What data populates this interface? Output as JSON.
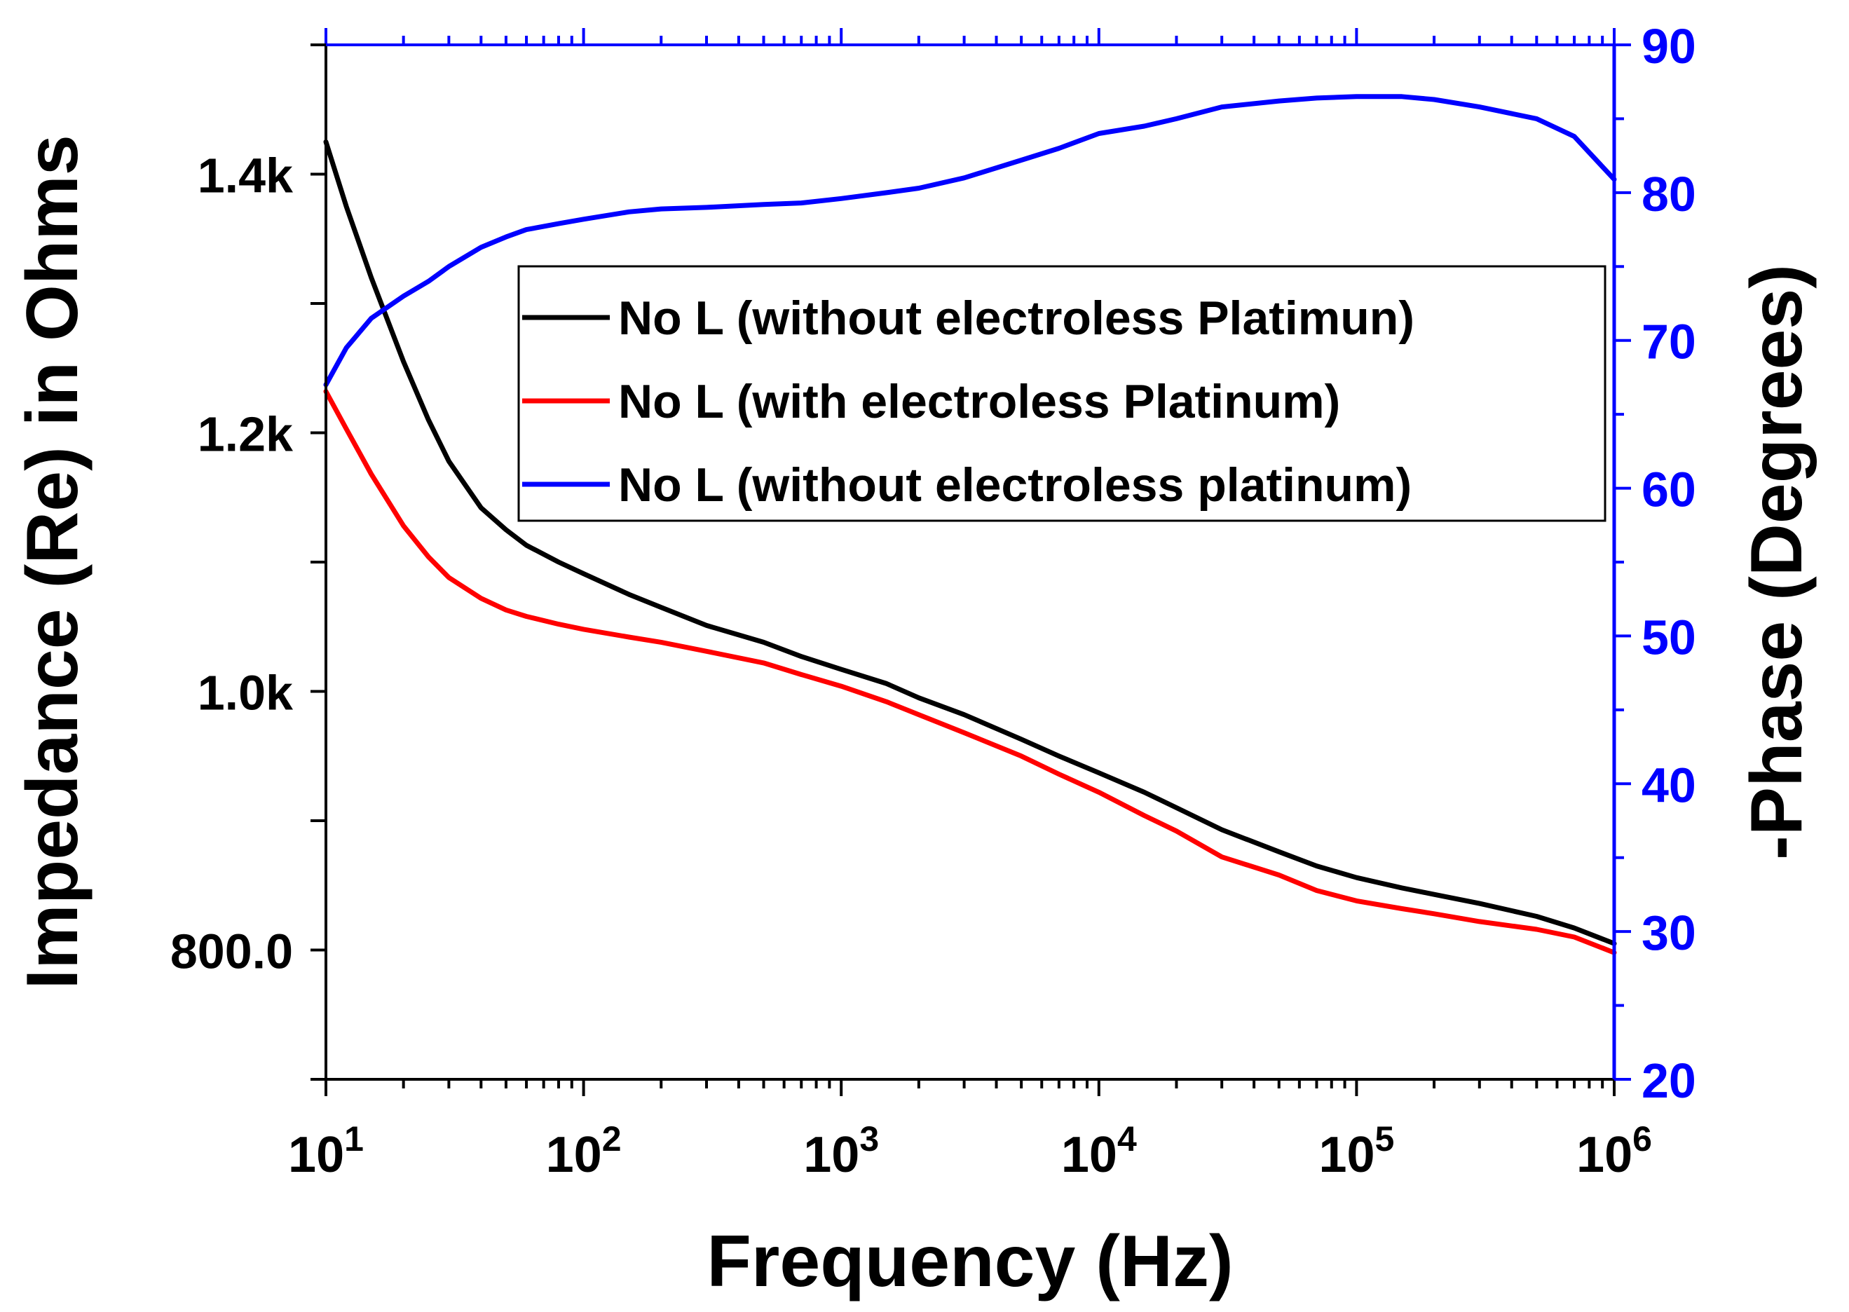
{
  "chart_data": {
    "type": "line",
    "xlabel": "Frequency (Hz)",
    "ylabel_left": "Impedance (Re) in Ohms",
    "ylabel_right": "-Phase (Degrees)",
    "x_scale": "log",
    "xlim": [
      10,
      1000000
    ],
    "ylim_left": [
      700,
      1500
    ],
    "ylim_right": [
      20,
      90
    ],
    "x_ticks": [
      {
        "value": 10,
        "base": "10",
        "exp": "1"
      },
      {
        "value": 100,
        "base": "10",
        "exp": "2"
      },
      {
        "value": 1000,
        "base": "10",
        "exp": "3"
      },
      {
        "value": 10000,
        "base": "10",
        "exp": "4"
      },
      {
        "value": 100000,
        "base": "10",
        "exp": "5"
      },
      {
        "value": 1000000,
        "base": "10",
        "exp": "6"
      }
    ],
    "y_left_ticks": [
      {
        "value": 800,
        "label": "800.0"
      },
      {
        "value": 1000,
        "label": "1.0k"
      },
      {
        "value": 1200,
        "label": "1.2k"
      },
      {
        "value": 1400,
        "label": "1.4k"
      }
    ],
    "y_right_ticks": [
      {
        "value": 20,
        "label": "20"
      },
      {
        "value": 30,
        "label": "30"
      },
      {
        "value": 40,
        "label": "40"
      },
      {
        "value": 50,
        "label": "50"
      },
      {
        "value": 60,
        "label": "60"
      },
      {
        "value": 70,
        "label": "70"
      },
      {
        "value": 80,
        "label": "80"
      },
      {
        "value": 90,
        "label": "90"
      }
    ],
    "legend_position": "upper-right",
    "colors": {
      "black": "#000000",
      "red": "#ff0000",
      "blue": "#0000ff"
    },
    "series": [
      {
        "name": "No L (without electroless Platimun)",
        "axis": "left",
        "color": "#000000",
        "x": [
          10,
          12,
          15,
          20,
          25,
          30,
          40,
          50,
          60,
          80,
          100,
          150,
          200,
          300,
          500,
          700,
          1000,
          1500,
          2000,
          3000,
          5000,
          7000,
          10000,
          15000,
          20000,
          30000,
          50000,
          70000,
          100000,
          150000,
          200000,
          300000,
          500000,
          700000,
          1000000
        ],
        "y": [
          1425,
          1375,
          1320,
          1255,
          1210,
          1178,
          1142,
          1125,
          1113,
          1100,
          1091,
          1075,
          1065,
          1051,
          1038,
          1027,
          1017,
          1006,
          995,
          982,
          963,
          950,
          937,
          922,
          910,
          893,
          876,
          865,
          856,
          848,
          843,
          836,
          826,
          817,
          805
        ]
      },
      {
        "name": "No L (with electroless Platinum)",
        "axis": "left",
        "color": "#ff0000",
        "x": [
          10,
          12,
          15,
          20,
          25,
          30,
          40,
          50,
          60,
          80,
          100,
          150,
          200,
          300,
          500,
          700,
          1000,
          1500,
          2000,
          3000,
          5000,
          7000,
          10000,
          15000,
          20000,
          30000,
          50000,
          70000,
          100000,
          150000,
          200000,
          300000,
          500000,
          700000,
          1000000
        ],
        "y": [
          1232,
          1203,
          1168,
          1128,
          1104,
          1088,
          1072,
          1063,
          1058,
          1052,
          1048,
          1042,
          1038,
          1031,
          1022,
          1013,
          1004,
          992,
          982,
          968,
          950,
          936,
          922,
          904,
          892,
          872,
          858,
          846,
          838,
          832,
          828,
          822,
          816,
          810,
          798
        ]
      },
      {
        "name": "No L (without electroless platinum)",
        "axis": "right",
        "color": "#0000ff",
        "x": [
          10,
          12,
          15,
          20,
          25,
          30,
          40,
          50,
          60,
          80,
          100,
          150,
          200,
          300,
          500,
          700,
          1000,
          1500,
          2000,
          3000,
          5000,
          7000,
          10000,
          15000,
          20000,
          30000,
          50000,
          70000,
          100000,
          150000,
          200000,
          300000,
          500000,
          700000,
          1000000
        ],
        "y": [
          67,
          69.5,
          71.5,
          73,
          74,
          75,
          76.3,
          77,
          77.5,
          77.9,
          78.2,
          78.7,
          78.9,
          79,
          79.2,
          79.3,
          79.6,
          80,
          80.3,
          81,
          82.2,
          83,
          84,
          84.5,
          85,
          85.8,
          86.2,
          86.4,
          86.5,
          86.5,
          86.3,
          85.8,
          85,
          83.8,
          80.9
        ]
      }
    ]
  }
}
